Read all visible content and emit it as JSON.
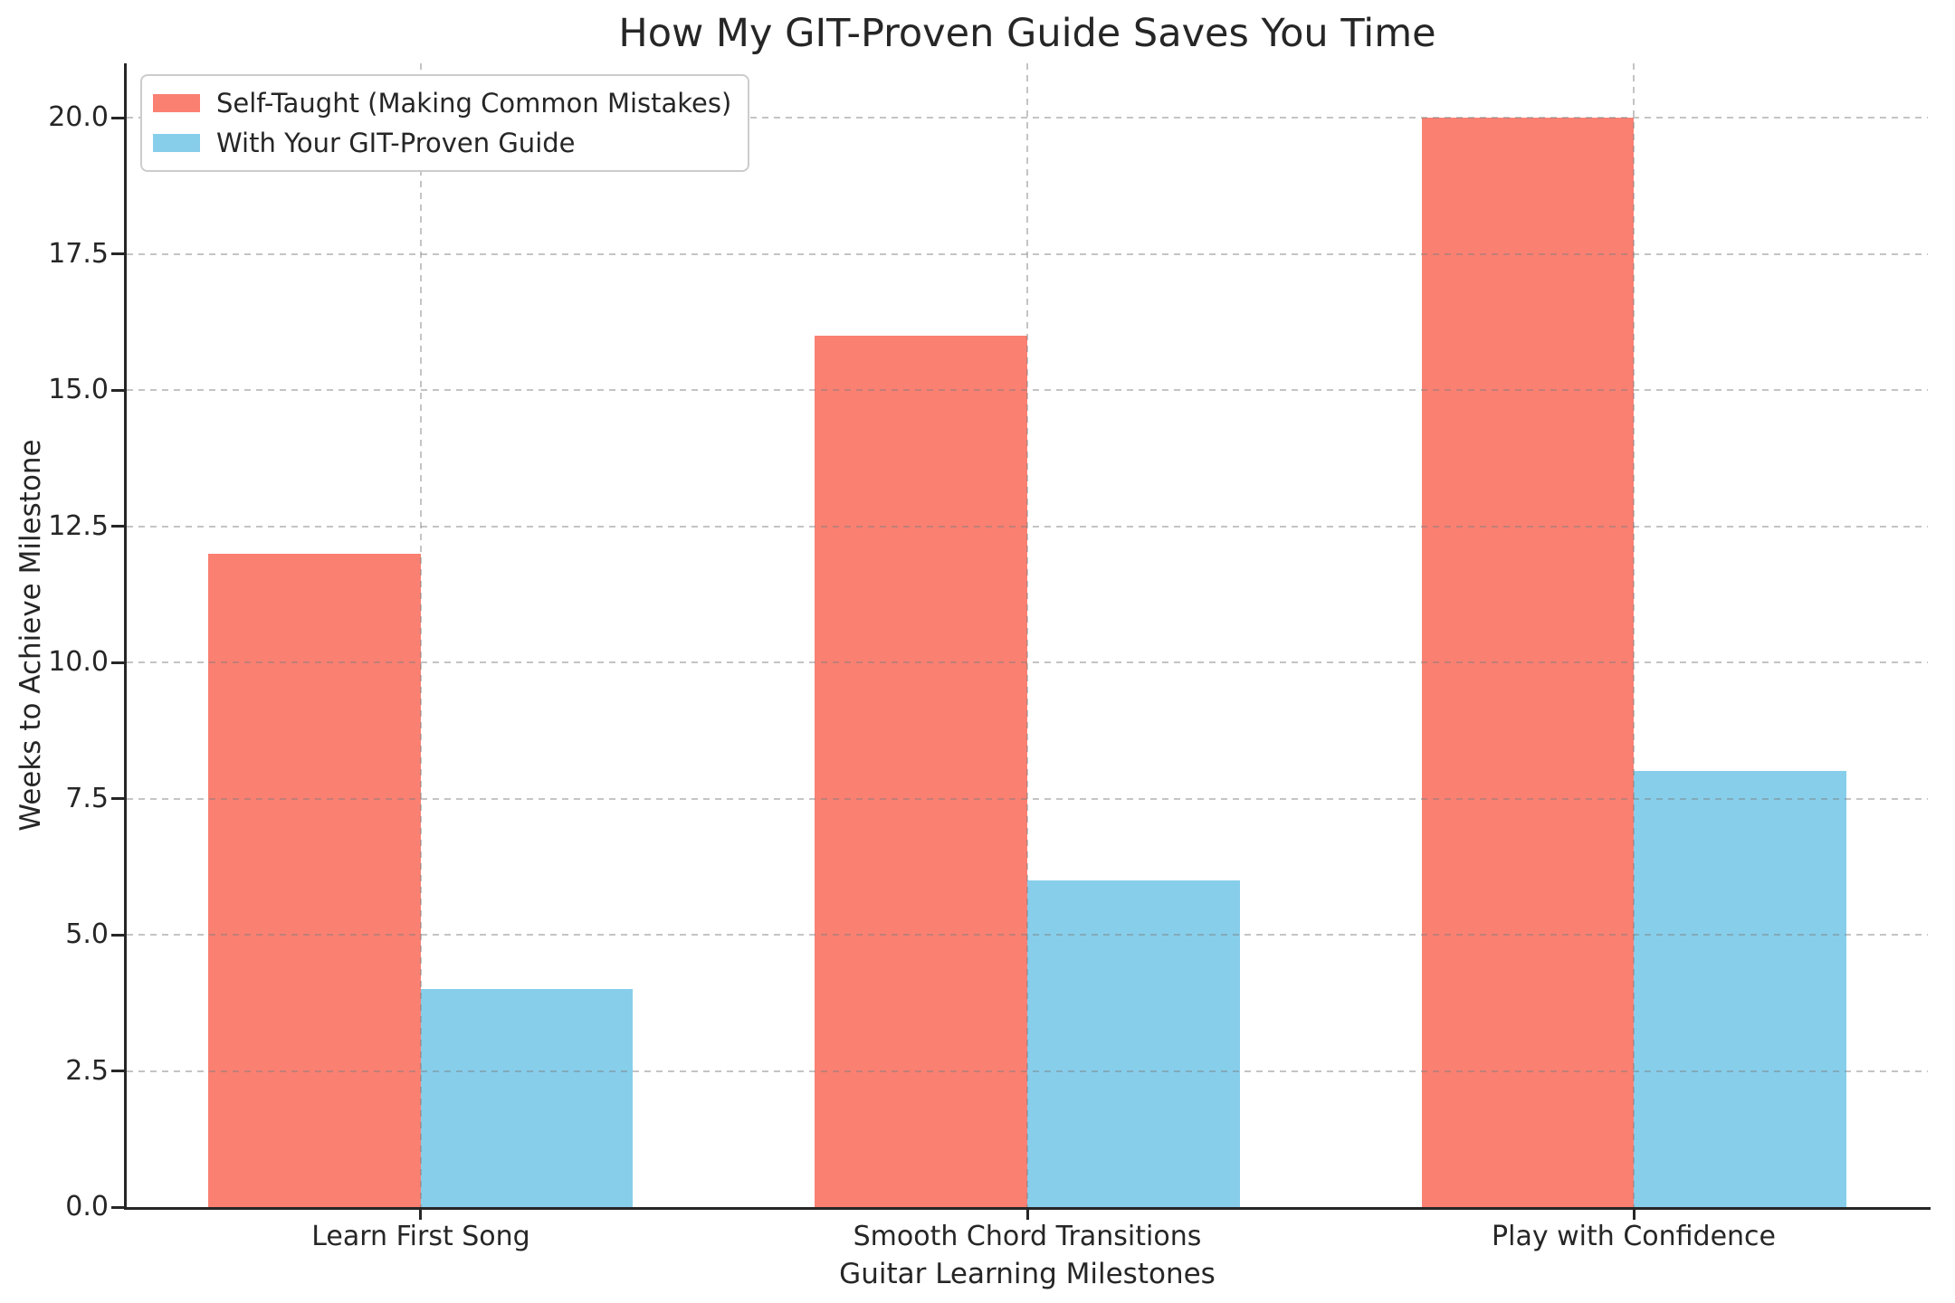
{
  "chart_data": {
    "type": "bar",
    "title": "How My GIT-Proven Guide Saves You Time",
    "xlabel": "Guitar Learning Milestones",
    "ylabel": "Weeks to Achieve Milestone",
    "categories": [
      "Learn First Song",
      "Smooth Chord Transitions",
      "Play with Confidence"
    ],
    "series": [
      {
        "name": "Self-Taught (Making Common Mistakes)",
        "color": "#FA8072",
        "values": [
          12,
          16,
          20
        ]
      },
      {
        "name": "With Your GIT-Proven Guide",
        "color": "#87CEEB",
        "values": [
          4,
          6,
          8
        ]
      }
    ],
    "yticks": [
      "0.0",
      "2.5",
      "5.0",
      "7.5",
      "10.0",
      "12.5",
      "15.0",
      "17.5",
      "20.0"
    ],
    "ylim": [
      0,
      21
    ],
    "xlim": [
      -0.485,
      2.485
    ],
    "bar_width": 0.35,
    "grid": true,
    "grid_style": "dashed",
    "legend_position": "upper left",
    "text_color": "#262626",
    "grid_color": "#7d7d7d"
  }
}
